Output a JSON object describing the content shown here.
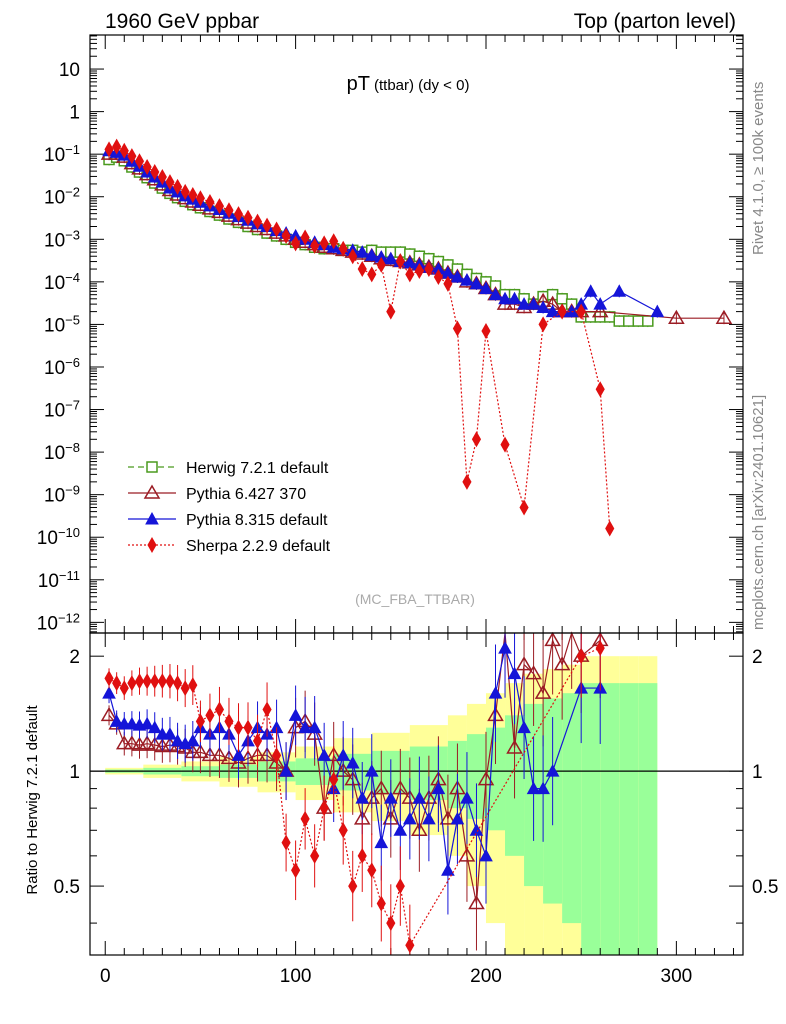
{
  "header": {
    "left": "1960 GeV ppbar",
    "right": "Top (parton level)"
  },
  "side_labels": {
    "rivet": "Rivet 4.1.0, ≥ 100k events",
    "mcplots": "mcplots.cern.ch [arXiv:2401.10621]"
  },
  "chart_data": {
    "type": "line",
    "title_main": "pT",
    "title_sub": "(ttbar) (dy < 0)",
    "watermark": "(MC_FBA_TTBAR)",
    "xlabel": "",
    "ylabel_ratio": "Ratio to Herwig 7.2.1 default",
    "xlim": [
      -8,
      335
    ],
    "ylim_main_log10": [
      -12.25,
      1.8
    ],
    "ylim_ratio": [
      0.33,
      2.3
    ],
    "x_ticks": [
      "0",
      "100",
      "200",
      "300"
    ],
    "x_tick_values": [
      0,
      100,
      200,
      300
    ],
    "y_ticks_main": [
      "10",
      "1",
      "10^-1",
      "10^-2",
      "10^-3",
      "10^-4",
      "10^-5",
      "10^-6",
      "10^-7",
      "10^-8",
      "10^-9",
      "10^-10",
      "10^-11",
      "10^-12"
    ],
    "y_tick_exponents": [
      1,
      0,
      -1,
      -2,
      -3,
      -4,
      -5,
      -6,
      -7,
      -8,
      -9,
      -10,
      -11,
      -12
    ],
    "y_ticks_ratio": [
      "0.5",
      "1",
      "2"
    ],
    "y_tick_values_ratio": [
      0.5,
      1,
      2
    ],
    "legend": [
      {
        "name": "Herwig 7.2.1 default",
        "color": "#4a9a1e",
        "marker": "open-square",
        "dash": "6,4"
      },
      {
        "name": "Pythia 6.427 370",
        "color": "#9b1c24",
        "marker": "open-triangle",
        "dash": ""
      },
      {
        "name": "Pythia 8.315 default",
        "color": "#1515d8",
        "marker": "filled-triangle",
        "dash": ""
      },
      {
        "name": "Sherpa 2.2.9 default",
        "color": "#e01010",
        "marker": "filled-diamond",
        "dash": "2,2"
      }
    ],
    "series": [
      {
        "name": "Herwig 7.2.1 default",
        "x": [
          2,
          6,
          10,
          14,
          18,
          22,
          26,
          30,
          34,
          38,
          42,
          46,
          50,
          55,
          60,
          65,
          70,
          75,
          80,
          85,
          90,
          95,
          100,
          105,
          110,
          115,
          120,
          125,
          130,
          135,
          140,
          145,
          150,
          155,
          160,
          165,
          170,
          175,
          180,
          185,
          190,
          195,
          200,
          205,
          210,
          215,
          220,
          225,
          230,
          235,
          240,
          245,
          250,
          255,
          260,
          265,
          270,
          275,
          280,
          285
        ],
        "y": [
          0.075,
          0.085,
          0.07,
          0.05,
          0.038,
          0.028,
          0.021,
          0.016,
          0.012,
          0.0095,
          0.0078,
          0.0065,
          0.0055,
          0.0045,
          0.0037,
          0.003,
          0.0025,
          0.002,
          0.0017,
          0.0014,
          0.0012,
          0.001,
          0.00085,
          0.00075,
          0.00065,
          0.0006,
          0.0006,
          0.00055,
          0.00055,
          0.0005,
          0.00055,
          0.0005,
          0.0005,
          0.0005,
          0.00045,
          0.0004,
          0.00035,
          0.0003,
          0.00025,
          0.0002,
          0.00015,
          0.00012,
          0.0001,
          8e-05,
          5e-05,
          5e-05,
          4e-05,
          3e-05,
          4.5e-05,
          5e-05,
          4e-05,
          3e-05,
          1.5e-05,
          1.5e-05,
          1.5e-05,
          1.5e-05,
          1.2e-05,
          1.2e-05,
          1.2e-05,
          1.2e-05
        ]
      },
      {
        "name": "Pythia 6.427 370",
        "x": [
          2,
          6,
          10,
          14,
          18,
          22,
          26,
          30,
          34,
          38,
          42,
          46,
          50,
          55,
          60,
          65,
          70,
          75,
          80,
          85,
          90,
          95,
          100,
          105,
          110,
          115,
          120,
          125,
          130,
          135,
          140,
          145,
          150,
          155,
          160,
          165,
          170,
          175,
          180,
          185,
          190,
          195,
          200,
          205,
          210,
          215,
          220,
          225,
          230,
          235,
          240,
          245,
          250,
          260,
          300,
          325
        ],
        "y": [
          0.1,
          0.1,
          0.085,
          0.06,
          0.045,
          0.033,
          0.025,
          0.019,
          0.014,
          0.011,
          0.009,
          0.0075,
          0.0063,
          0.0052,
          0.0043,
          0.0035,
          0.0029,
          0.0024,
          0.002,
          0.0017,
          0.0014,
          0.0012,
          0.001,
          0.00085,
          0.00075,
          0.00065,
          0.0006,
          0.00055,
          0.0005,
          0.00045,
          0.0004,
          0.00035,
          0.00032,
          0.0003,
          0.00028,
          0.00025,
          0.00022,
          0.0002,
          0.00016,
          0.00013,
          0.0001,
          9e-05,
          7e-05,
          5e-05,
          3e-05,
          3e-05,
          2.5e-05,
          3e-05,
          3.5e-05,
          3e-05,
          2e-05,
          2e-05,
          2e-05,
          2e-05,
          1.4e-05,
          1.4e-05
        ]
      },
      {
        "name": "Pythia 8.315 default",
        "x": [
          2,
          6,
          10,
          14,
          18,
          22,
          26,
          30,
          34,
          38,
          42,
          46,
          50,
          55,
          60,
          65,
          70,
          75,
          80,
          85,
          90,
          95,
          100,
          105,
          110,
          115,
          120,
          125,
          130,
          135,
          140,
          145,
          150,
          155,
          160,
          165,
          170,
          175,
          180,
          185,
          190,
          195,
          200,
          205,
          210,
          215,
          220,
          225,
          230,
          235,
          240,
          245,
          250,
          255,
          260,
          270,
          290
        ],
        "y": [
          0.12,
          0.11,
          0.095,
          0.068,
          0.052,
          0.038,
          0.029,
          0.022,
          0.016,
          0.013,
          0.0105,
          0.0088,
          0.0074,
          0.0061,
          0.005,
          0.0041,
          0.0034,
          0.0028,
          0.0023,
          0.002,
          0.0016,
          0.0014,
          0.0012,
          0.001,
          0.00085,
          0.00075,
          0.00065,
          0.0006,
          0.00055,
          0.0005,
          0.00042,
          0.00038,
          0.00035,
          0.0003,
          0.00028,
          0.00025,
          0.00022,
          0.0002,
          0.00016,
          0.00013,
          0.00011,
          9e-05,
          7e-05,
          5e-05,
          4e-05,
          4e-05,
          3e-05,
          3e-05,
          2.5e-05,
          2e-05,
          2e-05,
          2e-05,
          3e-05,
          6e-05,
          3e-05,
          6e-05,
          2e-05
        ]
      },
      {
        "name": "Sherpa 2.2.9 default",
        "x": [
          2,
          6,
          10,
          14,
          18,
          22,
          26,
          30,
          34,
          38,
          42,
          46,
          50,
          55,
          60,
          65,
          70,
          75,
          80,
          85,
          90,
          95,
          100,
          105,
          110,
          115,
          120,
          125,
          130,
          135,
          140,
          145,
          150,
          155,
          160,
          165,
          170,
          175,
          180,
          185,
          190,
          195,
          200,
          210,
          220,
          230,
          240,
          250,
          260,
          265
        ],
        "y": [
          0.13,
          0.15,
          0.12,
          0.09,
          0.068,
          0.05,
          0.038,
          0.029,
          0.022,
          0.017,
          0.013,
          0.011,
          0.0092,
          0.0075,
          0.006,
          0.0048,
          0.0039,
          0.0032,
          0.0026,
          0.0021,
          0.0017,
          0.0012,
          0.0008,
          0.0011,
          0.0007,
          0.0008,
          0.0009,
          0.0006,
          0.0004,
          0.0002,
          0.00015,
          0.00025,
          2e-05,
          0.0003,
          0.00015,
          0.00018,
          0.0002,
          0.00013,
          9e-05,
          8e-06,
          2e-09,
          2e-08,
          7e-06,
          1.5e-08,
          5e-10,
          1e-05,
          2e-05,
          2e-05,
          3e-07,
          1.6e-10
        ]
      }
    ],
    "ratio_series": [
      {
        "name": "Pythia 6.427 370",
        "x": [
          2,
          6,
          10,
          14,
          18,
          22,
          26,
          30,
          34,
          38,
          42,
          46,
          50,
          55,
          60,
          65,
          70,
          75,
          80,
          85,
          90,
          95,
          100,
          105,
          110,
          115,
          120,
          125,
          130,
          135,
          140,
          145,
          150,
          155,
          160,
          165,
          170,
          175,
          180,
          185,
          190,
          195,
          200,
          205,
          210,
          215,
          220,
          225,
          230,
          235,
          240,
          245,
          250,
          260
        ],
        "y": [
          1.4,
          1.33,
          1.18,
          1.18,
          1.17,
          1.18,
          1.17,
          1.16,
          1.17,
          1.16,
          1.15,
          1.12,
          1.12,
          1.1,
          1.1,
          1.08,
          1.05,
          1.08,
          1.1,
          1.1,
          1.05,
          1.0,
          1.3,
          1.35,
          1.25,
          0.8,
          1.1,
          1.0,
          0.95,
          0.75,
          0.85,
          0.9,
          0.75,
          0.9,
          0.85,
          0.7,
          0.85,
          0.95,
          0.75,
          0.9,
          0.6,
          0.45,
          0.95,
          1.4,
          2.3,
          1.15,
          1.9,
          1.8,
          1.6,
          2.2,
          1.9,
          2.3,
          2.0,
          2.2
        ]
      },
      {
        "name": "Pythia 8.315 default",
        "x": [
          2,
          6,
          10,
          14,
          18,
          22,
          26,
          30,
          34,
          38,
          42,
          46,
          50,
          55,
          60,
          65,
          70,
          75,
          80,
          85,
          90,
          95,
          100,
          105,
          110,
          115,
          120,
          125,
          130,
          135,
          140,
          145,
          150,
          155,
          160,
          165,
          170,
          175,
          180,
          185,
          190,
          195,
          200,
          205,
          210,
          215,
          220,
          225,
          230,
          235,
          250,
          260
        ],
        "y": [
          1.6,
          1.35,
          1.33,
          1.33,
          1.32,
          1.33,
          1.3,
          1.25,
          1.25,
          1.2,
          1.18,
          1.2,
          1.3,
          1.25,
          1.3,
          1.25,
          1.1,
          1.2,
          1.3,
          1.25,
          1.3,
          1.0,
          1.4,
          1.3,
          1.3,
          1.1,
          0.9,
          1.1,
          1.05,
          0.85,
          1.0,
          0.65,
          0.85,
          0.7,
          0.75,
          0.85,
          0.75,
          0.9,
          0.55,
          0.75,
          0.85,
          0.7,
          0.6,
          1.6,
          2.1,
          1.8,
          1.3,
          0.9,
          0.9,
          1.0,
          1.65,
          1.65
        ]
      },
      {
        "name": "Sherpa 2.2.9 default",
        "x": [
          2,
          6,
          10,
          14,
          18,
          22,
          26,
          30,
          34,
          38,
          42,
          46,
          50,
          55,
          60,
          65,
          70,
          75,
          80,
          85,
          90,
          95,
          100,
          105,
          110,
          115,
          120,
          125,
          130,
          135,
          140,
          145,
          150,
          155,
          160,
          250,
          260
        ],
        "y": [
          1.75,
          1.7,
          1.65,
          1.7,
          1.72,
          1.72,
          1.72,
          1.72,
          1.72,
          1.7,
          1.65,
          1.68,
          1.35,
          1.4,
          1.45,
          1.35,
          1.3,
          1.3,
          1.2,
          1.45,
          1.1,
          0.65,
          0.55,
          0.75,
          0.6,
          0.8,
          0.95,
          0.7,
          0.5,
          0.6,
          0.55,
          0.45,
          0.4,
          0.5,
          0.35,
          2.0,
          2.1
        ]
      }
    ],
    "bands": {
      "x_edges": [
        0,
        20,
        40,
        60,
        80,
        100,
        120,
        140,
        160,
        180,
        190,
        200,
        210,
        220,
        230,
        240,
        250,
        260,
        270,
        280,
        290
      ],
      "green_half": [
        0.01,
        0.02,
        0.03,
        0.04,
        0.06,
        0.08,
        0.11,
        0.13,
        0.16,
        0.2,
        0.25,
        0.3,
        0.4,
        0.5,
        0.55,
        0.6,
        0.7,
        0.7,
        0.7,
        0.7
      ],
      "yellow_half": [
        0.02,
        0.04,
        0.06,
        0.09,
        0.12,
        0.16,
        0.22,
        0.26,
        0.32,
        0.4,
        0.5,
        0.6,
        0.7,
        0.8,
        0.85,
        0.9,
        1.0,
        1.0,
        1.0,
        1.0
      ]
    }
  }
}
